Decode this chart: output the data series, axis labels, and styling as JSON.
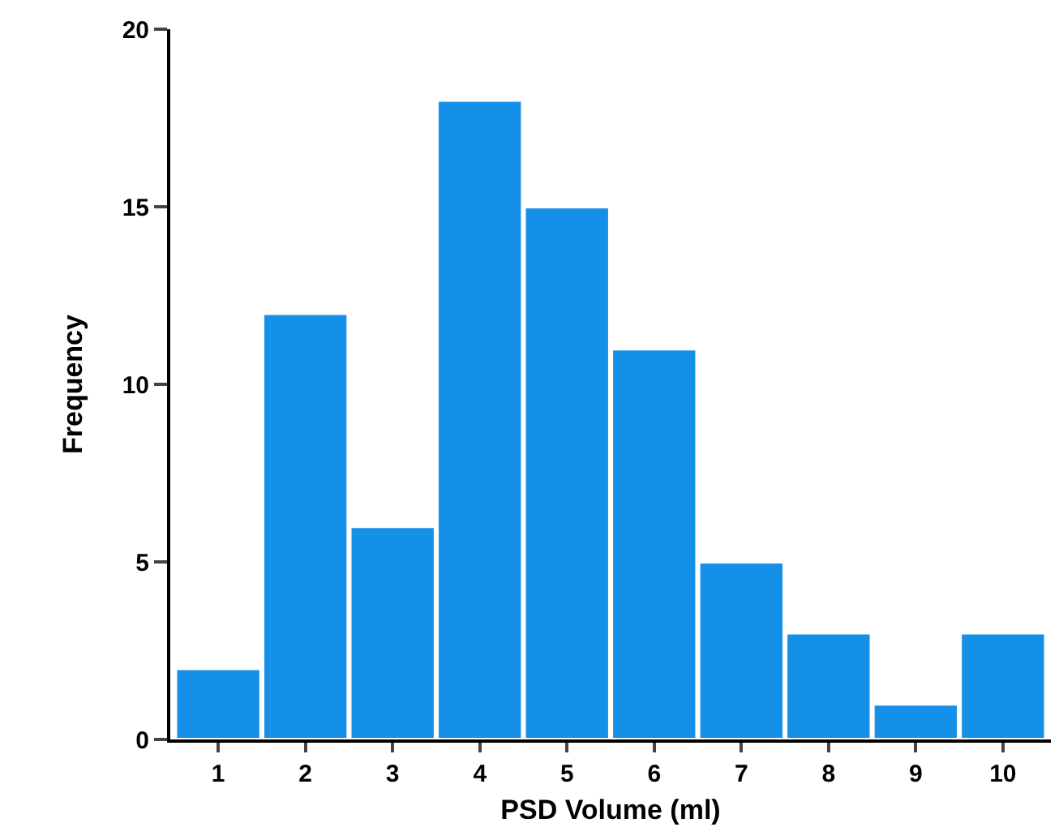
{
  "chart_data": {
    "type": "bar",
    "xlabel": "PSD Volume (ml)",
    "ylabel": "Frequency",
    "categories": [
      "1",
      "2",
      "3",
      "4",
      "5",
      "6",
      "7",
      "8",
      "9",
      "10"
    ],
    "values": [
      2,
      12,
      6,
      18,
      15,
      11,
      5,
      3,
      1,
      3
    ],
    "color": "#1490e8",
    "ylim": [
      0,
      20
    ],
    "yticks": [
      0,
      5,
      10,
      15,
      20
    ]
  }
}
